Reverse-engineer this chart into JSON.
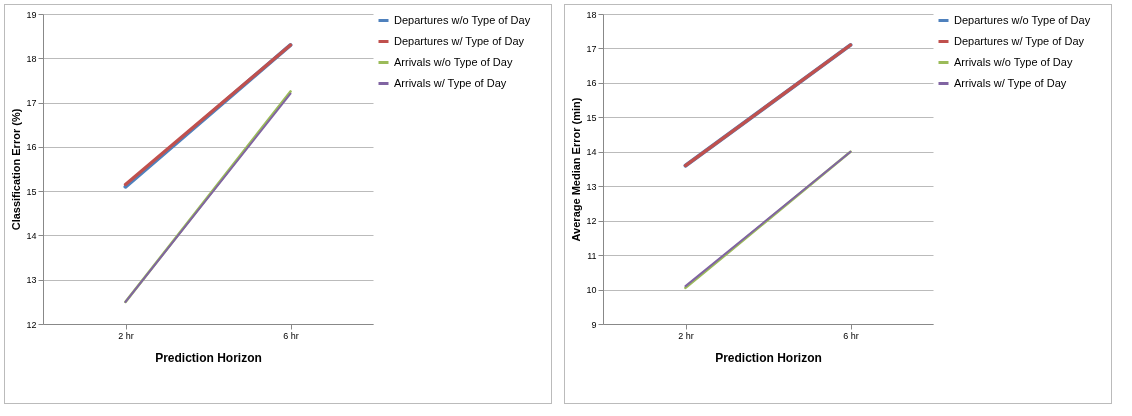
{
  "chart_data": [
    {
      "type": "line",
      "xlabel": "Prediction Horizon",
      "ylabel": "Classification Error (%)",
      "categories": [
        "2 hr",
        "6 hr"
      ],
      "ylim": [
        12,
        19
      ],
      "yticks": [
        12,
        13,
        14,
        15,
        16,
        17,
        18,
        19
      ],
      "grid": "y",
      "legend": "right",
      "marker": "none",
      "series": [
        {
          "name": "Departures w/o Type of Day",
          "color": "#4f81bd",
          "values": [
            15.1,
            18.3
          ]
        },
        {
          "name": "Departures w/ Type of Day",
          "color": "#c0504d",
          "values": [
            15.15,
            18.3
          ]
        },
        {
          "name": "Arrivals w/o Type of Day",
          "color": "#9bbb59",
          "values": [
            12.5,
            17.25
          ]
        },
        {
          "name": "Arrivals w/ Type of Day",
          "color": "#8064a2",
          "values": [
            12.5,
            17.2
          ]
        }
      ]
    },
    {
      "type": "line",
      "xlabel": "Prediction Horizon",
      "ylabel": "Average Median Error (min)",
      "categories": [
        "2 hr",
        "6 hr"
      ],
      "ylim": [
        9,
        18
      ],
      "yticks": [
        9,
        10,
        11,
        12,
        13,
        14,
        15,
        16,
        17,
        18
      ],
      "grid": "y",
      "legend": "right",
      "marker": "none",
      "series": [
        {
          "name": "Departures w/o Type of Day",
          "color": "#4f81bd",
          "values": [
            13.6,
            17.1
          ]
        },
        {
          "name": "Departures w/ Type of Day",
          "color": "#c0504d",
          "values": [
            13.6,
            17.1
          ]
        },
        {
          "name": "Arrivals w/o Type of Day",
          "color": "#9bbb59",
          "values": [
            10.05,
            14.0
          ]
        },
        {
          "name": "Arrivals w/ Type of Day",
          "color": "#8064a2",
          "values": [
            10.1,
            14.0
          ]
        }
      ]
    }
  ]
}
